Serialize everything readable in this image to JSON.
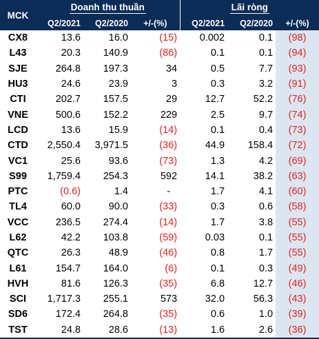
{
  "table": {
    "mck_header": "MCK",
    "group_revenue": "Doanh thu thuần",
    "group_profit": "Lãi ròng",
    "sub_headers": [
      "Q2/2021",
      "Q2/2020",
      "+/-(%)",
      "Q2/2021",
      "Q2/2020",
      "+/-(%)"
    ],
    "rows": [
      {
        "mck": "CX8",
        "rev_2021": "13.6",
        "rev_2020": "16.0",
        "rev_change": "(15)",
        "np_2021": "0.002",
        "np_2020": "0.1",
        "np_change": "(98)"
      },
      {
        "mck": "L43",
        "rev_2021": "20.3",
        "rev_2020": "140.9",
        "rev_change": "(86)",
        "np_2021": "0.1",
        "np_2020": "0.1",
        "np_change": "(94)"
      },
      {
        "mck": "SJE",
        "rev_2021": "264.8",
        "rev_2020": "197.3",
        "rev_change": "34",
        "np_2021": "0.5",
        "np_2020": "7.7",
        "np_change": "(93)"
      },
      {
        "mck": "HU3",
        "rev_2021": "24.6",
        "rev_2020": "23.9",
        "rev_change": "3",
        "np_2021": "0.3",
        "np_2020": "3.2",
        "np_change": "(91)"
      },
      {
        "mck": "CTI",
        "rev_2021": "202.7",
        "rev_2020": "157.5",
        "rev_change": "29",
        "np_2021": "12.7",
        "np_2020": "52.2",
        "np_change": "(76)"
      },
      {
        "mck": "VNE",
        "rev_2021": "500.6",
        "rev_2020": "152.2",
        "rev_change": "229",
        "np_2021": "2.5",
        "np_2020": "9.7",
        "np_change": "(74)"
      },
      {
        "mck": "LCD",
        "rev_2021": "13.6",
        "rev_2020": "15.9",
        "rev_change": "(14)",
        "np_2021": "0.1",
        "np_2020": "0.4",
        "np_change": "(73)"
      },
      {
        "mck": "CTD",
        "rev_2021": "2,550.4",
        "rev_2020": "3,971.5",
        "rev_change": "(36)",
        "np_2021": "44.9",
        "np_2020": "158.4",
        "np_change": "(72)"
      },
      {
        "mck": "VC1",
        "rev_2021": "25.6",
        "rev_2020": "93.6",
        "rev_change": "(73)",
        "np_2021": "1.3",
        "np_2020": "4.2",
        "np_change": "(69)"
      },
      {
        "mck": "S99",
        "rev_2021": "1,759.4",
        "rev_2020": "254.3",
        "rev_change": "592",
        "np_2021": "14.1",
        "np_2020": "38.2",
        "np_change": "(63)"
      },
      {
        "mck": "PTC",
        "rev_2021": "(0.6)",
        "rev_2020": "1.4",
        "rev_change": "-",
        "np_2021": "1.7",
        "np_2020": "4.1",
        "np_change": "(60)"
      },
      {
        "mck": "TL4",
        "rev_2021": "60.0",
        "rev_2020": "90.0",
        "rev_change": "(33)",
        "np_2021": "0.3",
        "np_2020": "0.6",
        "np_change": "(58)"
      },
      {
        "mck": "VCC",
        "rev_2021": "236.5",
        "rev_2020": "274.4",
        "rev_change": "(14)",
        "np_2021": "1.7",
        "np_2020": "3.8",
        "np_change": "(55)"
      },
      {
        "mck": "L62",
        "rev_2021": "42.2",
        "rev_2020": "103.8",
        "rev_change": "(59)",
        "np_2021": "0.03",
        "np_2020": "0.1",
        "np_change": "(55)"
      },
      {
        "mck": "QTC",
        "rev_2021": "26.3",
        "rev_2020": "48.9",
        "rev_change": "(46)",
        "np_2021": "0.8",
        "np_2020": "1.7",
        "np_change": "(55)"
      },
      {
        "mck": "L61",
        "rev_2021": "154.7",
        "rev_2020": "164.0",
        "rev_change": "(6)",
        "np_2021": "0.1",
        "np_2020": "0.3",
        "np_change": "(49)"
      },
      {
        "mck": "HVH",
        "rev_2021": "81.6",
        "rev_2020": "126.3",
        "rev_change": "(35)",
        "np_2021": "6.8",
        "np_2020": "12.7",
        "np_change": "(46)"
      },
      {
        "mck": "SCI",
        "rev_2021": "1,717.3",
        "rev_2020": "255.1",
        "rev_change": "573",
        "np_2021": "32.0",
        "np_2020": "56.3",
        "np_change": "(43)"
      },
      {
        "mck": "SD6",
        "rev_2021": "172.4",
        "rev_2020": "264.8",
        "rev_change": "(35)",
        "np_2021": "0.6",
        "np_2020": "1.0",
        "np_change": "(39)"
      },
      {
        "mck": "TST",
        "rev_2021": "24.8",
        "rev_2020": "28.6",
        "rev_change": "(13)",
        "np_2021": "1.6",
        "np_2020": "2.6",
        "np_change": "(36)"
      }
    ]
  },
  "colors": {
    "header_bg": "#0b2c57",
    "negative_text": "#e0231f",
    "last_column_bg": "#dce6f1"
  }
}
